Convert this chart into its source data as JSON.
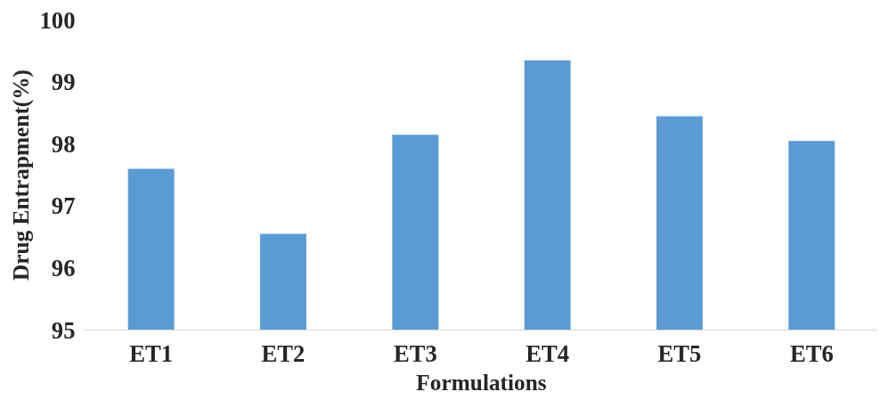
{
  "chart_data": {
    "type": "bar",
    "xlabel": "Formulations",
    "ylabel": "Drug Entrapment(%)",
    "categories": [
      "ET1",
      "ET2",
      "ET3",
      "ET4",
      "ET5",
      "ET6"
    ],
    "values": [
      97.6,
      96.55,
      98.15,
      99.35,
      98.45,
      98.05
    ],
    "color": "#5b9bd5",
    "ylim": [
      95,
      100
    ],
    "yticks": [
      95,
      96,
      97,
      98,
      99,
      100
    ],
    "grid": false
  }
}
